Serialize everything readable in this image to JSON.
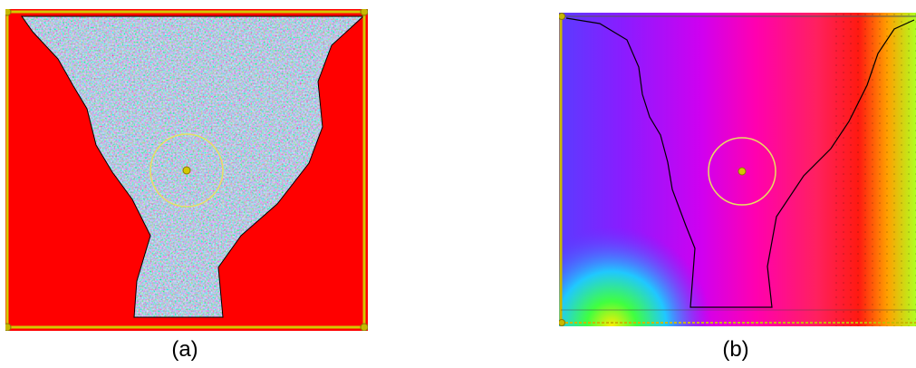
{
  "figure": {
    "panels": [
      {
        "caption": "(a)",
        "description_key": "noisy-orientation-map"
      },
      {
        "caption": "(b)",
        "description_key": "smooth-orientation-map"
      }
    ]
  },
  "colors": {
    "background_red": "#ff0000",
    "outline_yellow": "#d4c800",
    "contour_black": "#000000",
    "circle_yellow": "#e8e060"
  }
}
